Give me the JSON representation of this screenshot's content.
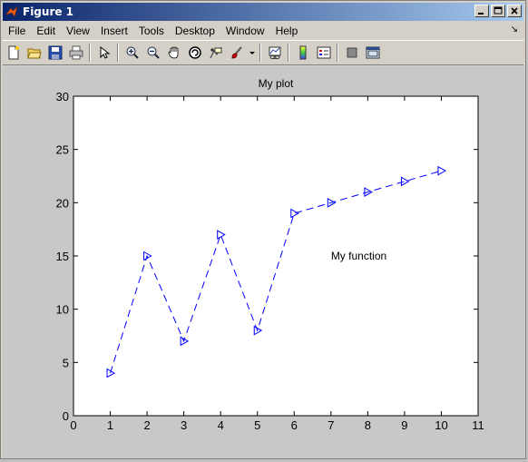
{
  "window": {
    "title": "Figure 1",
    "minimize_icon": "minimize-icon",
    "maximize_icon": "maximize-icon",
    "close_icon": "close-icon"
  },
  "menubar": {
    "items": [
      "File",
      "Edit",
      "View",
      "Insert",
      "Tools",
      "Desktop",
      "Window",
      "Help"
    ],
    "dock_arrow": "↘"
  },
  "toolbar": {
    "icons": [
      "new-figure-icon",
      "open-file-icon",
      "save-icon",
      "print-icon",
      "arrow-select-icon",
      "zoom-in-icon",
      "zoom-out-icon",
      "pan-hand-icon",
      "rotate-3d-icon",
      "data-cursor-icon",
      "brush-icon",
      "brush-dropdown-icon",
      "link-plot-icon",
      "colorbar-icon",
      "legend-icon",
      "hide-plot-tools-icon",
      "show-plot-tools-icon"
    ]
  },
  "colors": {
    "line": "#0000ff",
    "axes_bg": "#ffffff",
    "figure_bg": "#c8c8c8"
  },
  "chart_data": {
    "type": "line",
    "title": "My plot",
    "xlabel": "",
    "ylabel": "",
    "xlim": [
      0,
      11
    ],
    "ylim": [
      0,
      30
    ],
    "x_ticks": [
      0,
      1,
      2,
      3,
      4,
      5,
      6,
      7,
      8,
      9,
      10,
      11
    ],
    "y_ticks": [
      0,
      5,
      10,
      15,
      20,
      25,
      30
    ],
    "grid": false,
    "line_style": "dashed",
    "marker": "triangle-right",
    "series": [
      {
        "x": [
          1,
          2,
          3,
          4,
          5,
          6,
          7,
          8,
          9,
          10
        ],
        "values": [
          4,
          15,
          7,
          17,
          8,
          19,
          20,
          21,
          22,
          23
        ]
      }
    ],
    "annotations": [
      {
        "text": "My function",
        "x": 7,
        "y": 15
      }
    ]
  }
}
